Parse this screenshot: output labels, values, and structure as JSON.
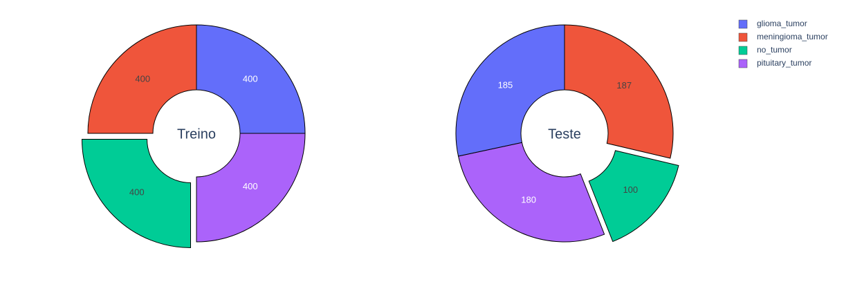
{
  "colors": {
    "glioma_tumor": "#636efa",
    "meningioma_tumor": "#ef553b",
    "no_tumor": "#00cc96",
    "pituitary_tumor": "#ab63fa"
  },
  "legend": {
    "items": [
      "glioma_tumor",
      "meningioma_tumor",
      "no_tumor",
      "pituitary_tumor"
    ]
  },
  "chart_data": [
    {
      "type": "pie",
      "hole": true,
      "center_label": "Treino",
      "slices": [
        {
          "label": "glioma_tumor",
          "value": 400,
          "pulled": false
        },
        {
          "label": "pituitary_tumor",
          "value": 400,
          "pulled": false
        },
        {
          "label": "no_tumor",
          "value": 400,
          "pulled": true
        },
        {
          "label": "meningioma_tumor",
          "value": 400,
          "pulled": false
        }
      ]
    },
    {
      "type": "pie",
      "hole": true,
      "center_label": "Teste",
      "slices": [
        {
          "label": "meningioma_tumor",
          "value": 187,
          "pulled": false
        },
        {
          "label": "no_tumor",
          "value": 100,
          "pulled": true
        },
        {
          "label": "pituitary_tumor",
          "value": 180,
          "pulled": false
        },
        {
          "label": "glioma_tumor",
          "value": 185,
          "pulled": false
        }
      ]
    }
  ]
}
